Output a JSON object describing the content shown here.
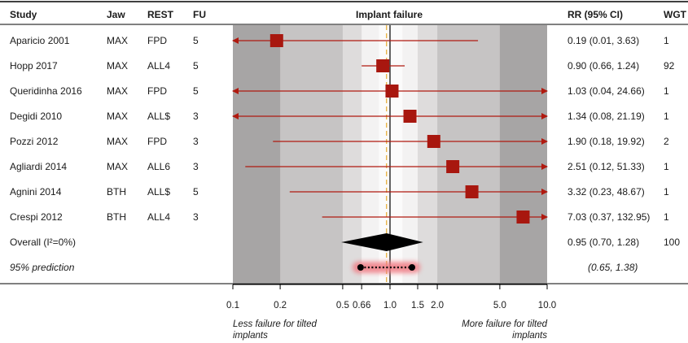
{
  "columns": {
    "study": "Study",
    "jaw": "Jaw",
    "rest": "REST",
    "fu": "FU",
    "plot_title": "Implant failure",
    "rr": "RR (95% CI)",
    "wgt": "WGT"
  },
  "rows": [
    {
      "study": "Aparicio 2001",
      "jaw": "MAX",
      "rest": "FPD",
      "fu": "5",
      "rr_text": "0.19 (0.01, 3.63)",
      "wgt": "1"
    },
    {
      "study": "Hopp 2017",
      "jaw": "MAX",
      "rest": "ALL4",
      "fu": "5",
      "rr_text": "0.90 (0.66, 1.24)",
      "wgt": "92"
    },
    {
      "study": "Queridinha 2016",
      "jaw": "MAX",
      "rest": "FPD",
      "fu": "5",
      "rr_text": "1.03 (0.04, 24.66)",
      "wgt": "1"
    },
    {
      "study": "Degidi 2010",
      "jaw": "MAX",
      "rest": "ALL$",
      "fu": "3",
      "rr_text": "1.34 (0.08, 21.19)",
      "wgt": "1"
    },
    {
      "study": "Pozzi 2012",
      "jaw": "MAX",
      "rest": "FPD",
      "fu": "3",
      "rr_text": "1.90 (0.18, 19.92)",
      "wgt": "2"
    },
    {
      "study": "Agliardi 2014",
      "jaw": "MAX",
      "rest": "ALL6",
      "fu": "3",
      "rr_text": "2.51 (0.12, 51.33)",
      "wgt": "1"
    },
    {
      "study": "Agnini 2014",
      "jaw": "BTH",
      "rest": "ALL$",
      "fu": "5",
      "rr_text": "3.32 (0.23, 48.67)",
      "wgt": "1"
    },
    {
      "study": "Crespi 2012",
      "jaw": "BTH",
      "rest": "ALL4",
      "fu": "3",
      "rr_text": "7.03 (0.37, 132.95)",
      "wgt": "1"
    }
  ],
  "overall": {
    "label": "Overall (I²=0%)",
    "rr_text": "0.95 (0.70, 1.28)",
    "wgt": "100"
  },
  "prediction": {
    "label": "95% prediction",
    "rr_text": "(0.65, 1.38)"
  },
  "footer": {
    "left_note": [
      "Less failure for tilted",
      "implants"
    ],
    "right_note": [
      "More failure for tilted",
      "implants"
    ]
  },
  "colors": {
    "marker": "#a8170f",
    "ci_line": "#b01a10",
    "diamond": "#000000",
    "prediction_glow": "#f07a82",
    "null_line": "#000000",
    "pooled_line": "#e8b54a",
    "bands": [
      "#a7a5a5",
      "#c6c4c4",
      "#dedcdc",
      "#f3f2f2",
      "#fbfbfb"
    ]
  },
  "chart_data": {
    "type": "forest",
    "title": "Implant failure",
    "x_scale": "log",
    "xlim": [
      0.1,
      10.0
    ],
    "x_ticks": [
      0.1,
      0.2,
      0.5,
      0.66,
      1.0,
      1.5,
      2.0,
      5.0,
      10.0
    ],
    "x_tick_labels": [
      "0.1",
      "0.2",
      "0.5",
      "0.66",
      "1.0",
      "1.5",
      "2.0",
      "5.0",
      "10.0"
    ],
    "null_value": 1.0,
    "pooled_reference": 0.95,
    "studies": [
      {
        "name": "Aparicio 2001",
        "rr": 0.19,
        "lower": 0.01,
        "upper": 3.63,
        "weight": 1
      },
      {
        "name": "Hopp 2017",
        "rr": 0.9,
        "lower": 0.66,
        "upper": 1.24,
        "weight": 92
      },
      {
        "name": "Queridinha 2016",
        "rr": 1.03,
        "lower": 0.04,
        "upper": 24.66,
        "weight": 1
      },
      {
        "name": "Degidi 2010",
        "rr": 1.34,
        "lower": 0.08,
        "upper": 21.19,
        "weight": 1
      },
      {
        "name": "Pozzi 2012",
        "rr": 1.9,
        "lower": 0.18,
        "upper": 19.92,
        "weight": 2
      },
      {
        "name": "Agliardi 2014",
        "rr": 2.51,
        "lower": 0.12,
        "upper": 51.33,
        "weight": 1
      },
      {
        "name": "Agnini 2014",
        "rr": 3.32,
        "lower": 0.23,
        "upper": 48.67,
        "weight": 1
      },
      {
        "name": "Crespi 2012",
        "rr": 7.03,
        "lower": 0.37,
        "upper": 132.95,
        "weight": 1
      }
    ],
    "overall": {
      "rr": 0.95,
      "lower": 0.7,
      "upper": 1.28,
      "weight": 100
    },
    "prediction_interval": {
      "lower": 0.65,
      "upper": 1.38
    },
    "background_bands": [
      [
        0.1,
        10.0
      ],
      [
        0.2,
        5.0
      ],
      [
        0.5,
        2.0
      ],
      [
        0.66,
        1.5
      ]
    ]
  }
}
